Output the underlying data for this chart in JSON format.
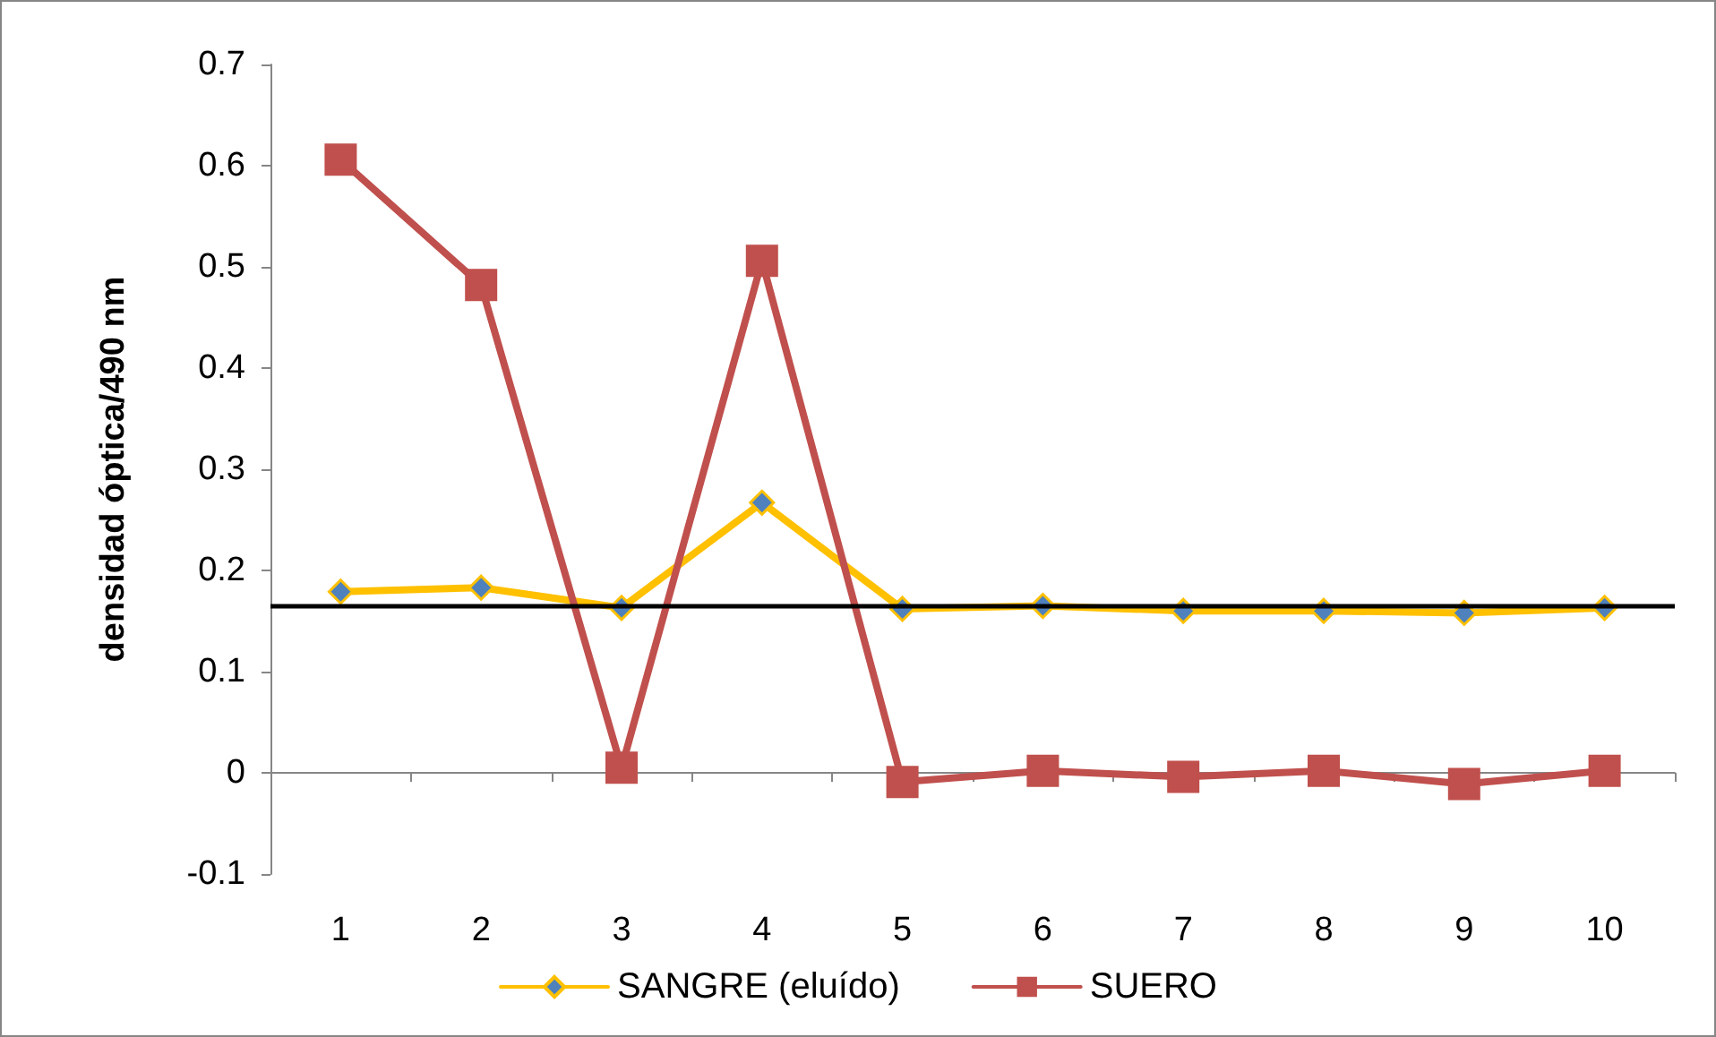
{
  "chart_data": {
    "type": "line",
    "ylabel": "densidad óptica/490 nm",
    "categories": [
      "1",
      "2",
      "3",
      "4",
      "5",
      "6",
      "7",
      "8",
      "9",
      "10"
    ],
    "series": [
      {
        "name": "SANGRE (eluído)",
        "color": "#ffc000",
        "marker": "diamond",
        "values": [
          0.179,
          0.183,
          0.163,
          0.267,
          0.162,
          0.165,
          0.16,
          0.16,
          0.158,
          0.163
        ]
      },
      {
        "name": "SUERO",
        "color": "#c0504d",
        "marker": "square",
        "values": [
          0.606,
          0.482,
          0.005,
          0.506,
          -0.009,
          0.002,
          -0.004,
          0.002,
          -0.011,
          0.002
        ]
      }
    ],
    "ylim": [
      -0.1,
      0.7
    ],
    "yticks": [
      -0.1,
      0,
      0.1,
      0.2,
      0.3,
      0.4,
      0.5,
      0.6,
      0.7
    ],
    "legend": "bottom",
    "ref_lines": [
      {
        "axis": "y",
        "value": 0.165,
        "color": "#000000"
      }
    ]
  }
}
